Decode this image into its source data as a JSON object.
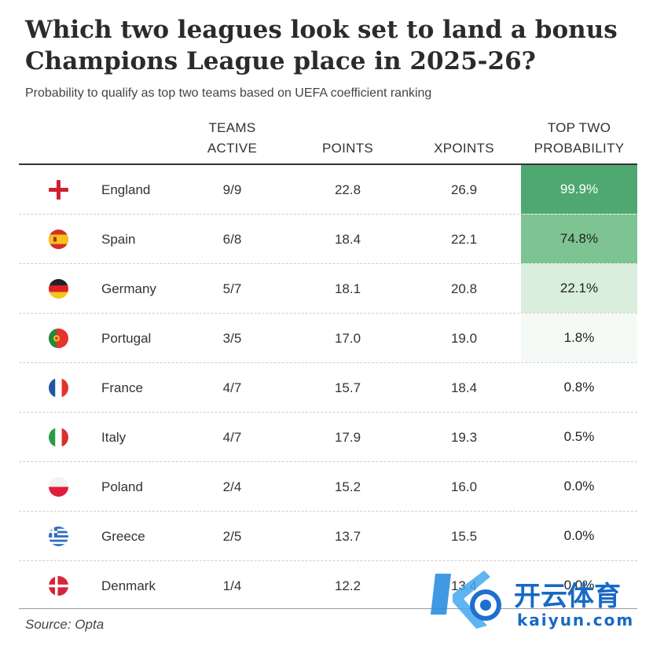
{
  "header": {
    "title": "Which two leagues look set to land a bonus Champions League place in 2025-26?",
    "subtitle": "Probability to qualify as top two teams based on UEFA coefficient ranking"
  },
  "columns": {
    "teams_active_1": "TEAMS",
    "teams_active_2": "ACTIVE",
    "points": "POINTS",
    "xpoints": "XPOINTS",
    "prob_1": "TOP TWO",
    "prob_2": "PROBABILITY"
  },
  "colors": {
    "high": "#4fa870",
    "mid": "#7ec493",
    "low": "#d9eedc",
    "faint": "#f6faf6"
  },
  "chart_data": {
    "type": "table",
    "columns": [
      "",
      "TEAMS ACTIVE",
      "POINTS",
      "XPOINTS",
      "TOP TWO PROBABILITY"
    ],
    "rows": [
      {
        "league": "England",
        "flag": "england-flag-icon",
        "teams_active": "9/9",
        "points": "22.8",
        "xpoints": "26.9",
        "probability": "99.9%",
        "prob_value": 99.9
      },
      {
        "league": "Spain",
        "flag": "spain-flag-icon",
        "teams_active": "6/8",
        "points": "18.4",
        "xpoints": "22.1",
        "probability": "74.8%",
        "prob_value": 74.8
      },
      {
        "league": "Germany",
        "flag": "germany-flag-icon",
        "teams_active": "5/7",
        "points": "18.1",
        "xpoints": "20.8",
        "probability": "22.1%",
        "prob_value": 22.1
      },
      {
        "league": "Portugal",
        "flag": "portugal-flag-icon",
        "teams_active": "3/5",
        "points": "17.0",
        "xpoints": "19.0",
        "probability": "1.8%",
        "prob_value": 1.8
      },
      {
        "league": "France",
        "flag": "france-flag-icon",
        "teams_active": "4/7",
        "points": "15.7",
        "xpoints": "18.4",
        "probability": "0.8%",
        "prob_value": 0.8
      },
      {
        "league": "Italy",
        "flag": "italy-flag-icon",
        "teams_active": "4/7",
        "points": "17.9",
        "xpoints": "19.3",
        "probability": "0.5%",
        "prob_value": 0.5
      },
      {
        "league": "Poland",
        "flag": "poland-flag-icon",
        "teams_active": "2/4",
        "points": "15.2",
        "xpoints": "16.0",
        "probability": "0.0%",
        "prob_value": 0.0
      },
      {
        "league": "Greece",
        "flag": "greece-flag-icon",
        "teams_active": "2/5",
        "points": "13.7",
        "xpoints": "15.5",
        "probability": "0.0%",
        "prob_value": 0.0
      },
      {
        "league": "Denmark",
        "flag": "denmark-flag-icon",
        "teams_active": "1/4",
        "points": "12.2",
        "xpoints": "13.4",
        "probability": "0.0%",
        "prob_value": 0.0
      }
    ]
  },
  "footer": {
    "source": "Source: Opta"
  },
  "watermark": {
    "brand": "开云体育",
    "url": "kaiyun.com"
  }
}
